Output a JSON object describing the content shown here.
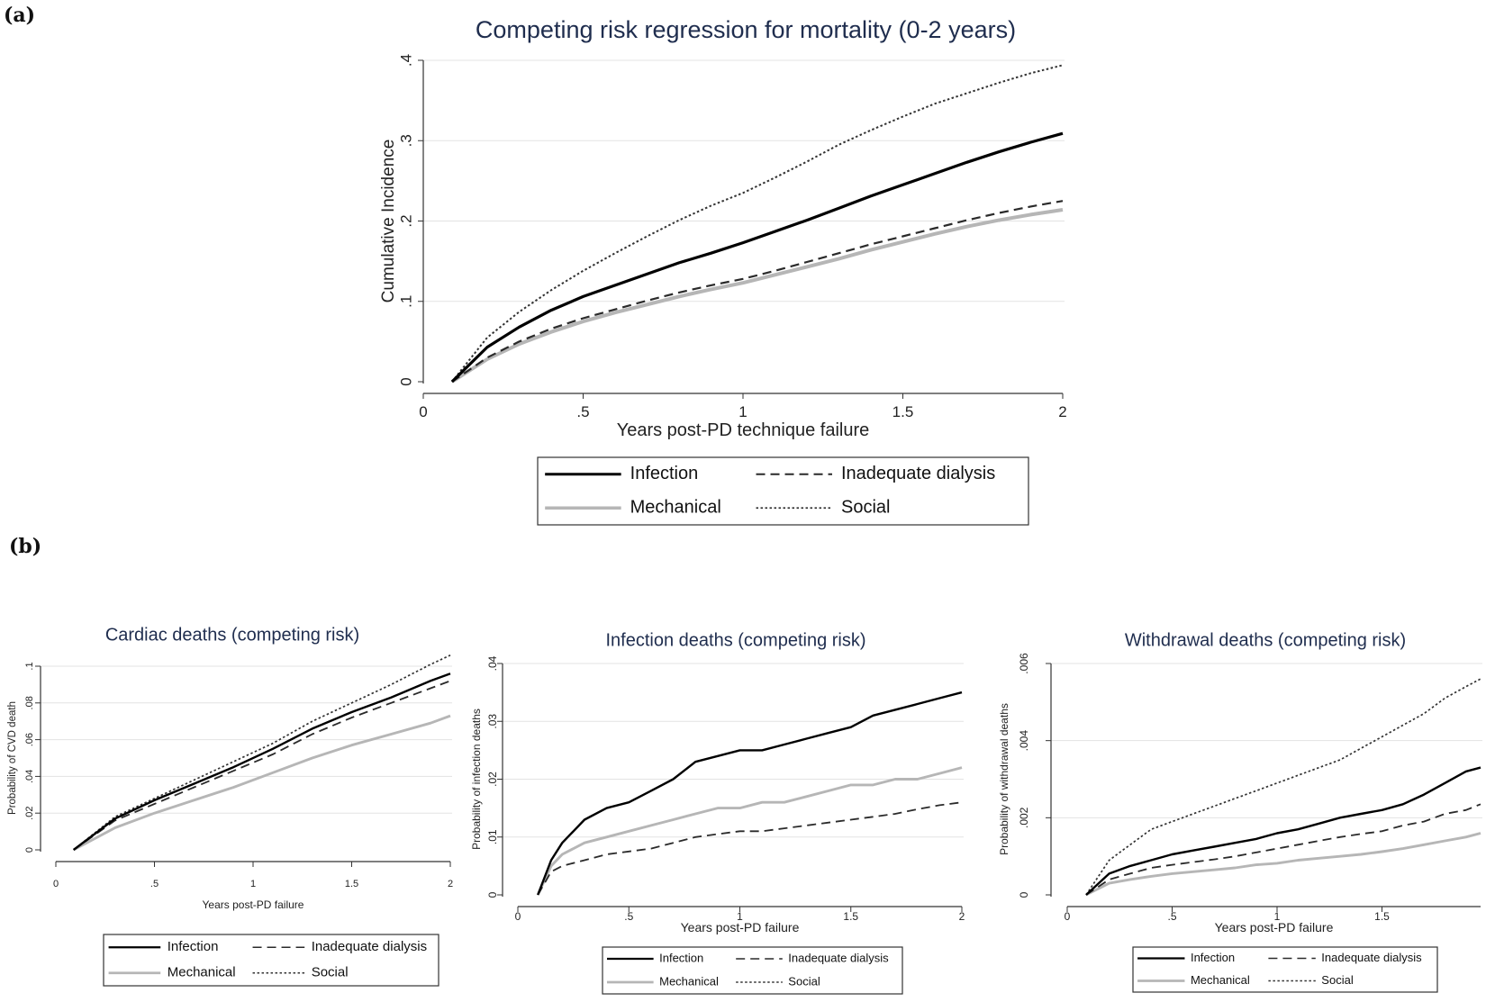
{
  "panel_labels": {
    "a": "(a)",
    "b": "(b)"
  },
  "chart_data": [
    {
      "type": "line",
      "title": "Competing risk regression for mortality (0-2 years)",
      "xlabel": "Years post-PD technique failure",
      "ylabel": "Cumulative Incidence",
      "xlim": [
        0,
        2
      ],
      "ylim": [
        0,
        0.4
      ],
      "xticks": [
        0,
        0.5,
        1,
        1.5,
        2
      ],
      "xtick_labels": [
        "0",
        ".5",
        "1",
        "1.5",
        "2"
      ],
      "yticks": [
        0,
        0.1,
        0.2,
        0.3,
        0.4
      ],
      "ytick_labels": [
        "0",
        ".1",
        ".2",
        ".3",
        ".4"
      ],
      "x": [
        0.09,
        0.2,
        0.3,
        0.4,
        0.5,
        0.6,
        0.7,
        0.8,
        0.9,
        1.0,
        1.1,
        1.2,
        1.3,
        1.4,
        1.5,
        1.6,
        1.7,
        1.8,
        1.9,
        2.0
      ],
      "series": [
        {
          "name": "Infection",
          "style": "solid",
          "color": "#000000",
          "values": [
            0.0,
            0.043,
            0.068,
            0.089,
            0.106,
            0.12,
            0.134,
            0.148,
            0.16,
            0.173,
            0.187,
            0.201,
            0.216,
            0.231,
            0.245,
            0.259,
            0.273,
            0.286,
            0.298,
            0.309
          ]
        },
        {
          "name": "Inadequate dialysis",
          "style": "dashed",
          "color": "#333333",
          "values": [
            0.0,
            0.03,
            0.05,
            0.066,
            0.079,
            0.09,
            0.101,
            0.111,
            0.12,
            0.128,
            0.138,
            0.149,
            0.16,
            0.171,
            0.181,
            0.191,
            0.201,
            0.21,
            0.218,
            0.225
          ]
        },
        {
          "name": "Mechanical",
          "style": "solid",
          "color": "#b4b4b4",
          "values": [
            0.0,
            0.028,
            0.047,
            0.062,
            0.075,
            0.086,
            0.096,
            0.106,
            0.115,
            0.123,
            0.133,
            0.143,
            0.153,
            0.164,
            0.174,
            0.184,
            0.193,
            0.201,
            0.208,
            0.214
          ]
        },
        {
          "name": "Social",
          "style": "dotted",
          "color": "#333333",
          "values": [
            0.0,
            0.055,
            0.087,
            0.114,
            0.138,
            0.16,
            0.181,
            0.201,
            0.219,
            0.235,
            0.254,
            0.274,
            0.295,
            0.313,
            0.33,
            0.346,
            0.359,
            0.372,
            0.384,
            0.394
          ]
        }
      ],
      "legend": [
        [
          "Infection",
          "Inadequate dialysis"
        ],
        [
          "Mechanical",
          "Social"
        ]
      ]
    },
    {
      "type": "line",
      "title": "Cardiac deaths (competing risk)",
      "xlabel": "Years post-PD failure",
      "ylabel": "Probability of CVD death",
      "xlim": [
        0,
        2
      ],
      "ylim": [
        0,
        0.1
      ],
      "xticks": [
        0,
        0.5,
        1,
        1.5,
        2
      ],
      "xtick_labels": [
        "0",
        ".5",
        "1",
        "1.5",
        "2"
      ],
      "yticks": [
        0,
        0.02,
        0.04,
        0.06,
        0.08,
        0.1
      ],
      "ytick_labels": [
        "0",
        ".02",
        ".04",
        ".06",
        ".08",
        ".1"
      ],
      "x": [
        0.09,
        0.3,
        0.5,
        0.7,
        0.9,
        1.1,
        1.3,
        1.5,
        1.7,
        1.9,
        2.0
      ],
      "series": [
        {
          "name": "Infection",
          "style": "solid",
          "color": "#000000",
          "values": [
            0.0,
            0.017,
            0.027,
            0.036,
            0.045,
            0.055,
            0.066,
            0.075,
            0.083,
            0.092,
            0.096
          ]
        },
        {
          "name": "Inadequate dialysis",
          "style": "dashed",
          "color": "#333333",
          "values": [
            0.0,
            0.016,
            0.025,
            0.034,
            0.043,
            0.052,
            0.063,
            0.072,
            0.08,
            0.088,
            0.092
          ]
        },
        {
          "name": "Mechanical",
          "style": "solid",
          "color": "#b4b4b4",
          "values": [
            0.0,
            0.012,
            0.02,
            0.027,
            0.034,
            0.042,
            0.05,
            0.057,
            0.063,
            0.069,
            0.073
          ]
        },
        {
          "name": "Social",
          "style": "dotted",
          "color": "#333333",
          "values": [
            0.0,
            0.018,
            0.028,
            0.038,
            0.048,
            0.058,
            0.07,
            0.08,
            0.09,
            0.101,
            0.106
          ]
        }
      ],
      "legend": [
        [
          "Infection",
          "Inadequate dialysis"
        ],
        [
          "Mechanical",
          "Social"
        ]
      ]
    },
    {
      "type": "line",
      "title": "Infection deaths (competing risk)",
      "xlabel": "Years post-PD failure",
      "ylabel": "Probability of infection deaths",
      "xlim": [
        0,
        2
      ],
      "ylim": [
        0,
        0.04
      ],
      "xticks": [
        0,
        0.5,
        1,
        1.5,
        2
      ],
      "xtick_labels": [
        "0",
        ".5",
        "1",
        "1.5",
        "2"
      ],
      "yticks": [
        0,
        0.01,
        0.02,
        0.03,
        0.04
      ],
      "ytick_labels": [
        "0",
        ".01",
        ".02",
        ".03",
        ".04"
      ],
      "x": [
        0.09,
        0.15,
        0.2,
        0.3,
        0.4,
        0.5,
        0.6,
        0.7,
        0.8,
        0.9,
        1.0,
        1.1,
        1.2,
        1.3,
        1.4,
        1.5,
        1.6,
        1.7,
        1.8,
        1.9,
        2.0
      ],
      "series": [
        {
          "name": "Infection",
          "style": "solid",
          "color": "#000000",
          "values": [
            0.0,
            0.006,
            0.009,
            0.013,
            0.015,
            0.016,
            0.018,
            0.02,
            0.023,
            0.024,
            0.025,
            0.025,
            0.026,
            0.027,
            0.028,
            0.029,
            0.031,
            0.032,
            0.033,
            0.034,
            0.035
          ]
        },
        {
          "name": "Inadequate dialysis",
          "style": "dashed",
          "color": "#333333",
          "values": [
            0.0,
            0.004,
            0.005,
            0.006,
            0.007,
            0.0075,
            0.008,
            0.009,
            0.01,
            0.0105,
            0.011,
            0.011,
            0.0115,
            0.012,
            0.0125,
            0.013,
            0.0135,
            0.014,
            0.0148,
            0.0155,
            0.016
          ]
        },
        {
          "name": "Mechanical",
          "style": "solid",
          "color": "#b4b4b4",
          "values": [
            0.0,
            0.005,
            0.007,
            0.009,
            0.01,
            0.011,
            0.012,
            0.013,
            0.014,
            0.015,
            0.015,
            0.016,
            0.016,
            0.017,
            0.018,
            0.019,
            0.019,
            0.02,
            0.02,
            0.021,
            0.022
          ]
        }
      ],
      "legend": [
        [
          "Infection",
          "Inadequate dialysis"
        ],
        [
          "Mechanical",
          "Social"
        ]
      ]
    },
    {
      "type": "line",
      "title": "Withdrawal deaths (competing risk)",
      "xlabel": "Years post-PD failure",
      "ylabel": "Probability of withdrawal deaths",
      "xlim": [
        0,
        1.97
      ],
      "ylim": [
        0,
        0.006
      ],
      "xticks": [
        0,
        0.5,
        1,
        1.5
      ],
      "xtick_labels": [
        "0",
        ".5",
        "1",
        "1.5"
      ],
      "yticks": [
        0,
        0.002,
        0.004,
        0.006
      ],
      "ytick_labels": [
        "0",
        ".002",
        ".004",
        ".006"
      ],
      "x": [
        0.09,
        0.2,
        0.3,
        0.4,
        0.5,
        0.6,
        0.7,
        0.8,
        0.9,
        1.0,
        1.1,
        1.2,
        1.3,
        1.4,
        1.5,
        1.6,
        1.7,
        1.8,
        1.9,
        1.97
      ],
      "series": [
        {
          "name": "Infection",
          "style": "solid",
          "color": "#000000",
          "values": [
            0.0,
            0.00055,
            0.00075,
            0.0009,
            0.00105,
            0.00115,
            0.00125,
            0.00135,
            0.00145,
            0.0016,
            0.0017,
            0.00185,
            0.002,
            0.0021,
            0.0022,
            0.00235,
            0.0026,
            0.0029,
            0.0032,
            0.0033
          ]
        },
        {
          "name": "Inadequate dialysis",
          "style": "dashed",
          "color": "#333333",
          "values": [
            0.0,
            0.0004,
            0.00055,
            0.0007,
            0.00078,
            0.00085,
            0.00092,
            0.001,
            0.0011,
            0.0012,
            0.0013,
            0.0014,
            0.0015,
            0.00158,
            0.00165,
            0.0018,
            0.0019,
            0.0021,
            0.0022,
            0.00235
          ]
        },
        {
          "name": "Mechanical",
          "style": "solid",
          "color": "#b4b4b4",
          "values": [
            0.0,
            0.0003,
            0.0004,
            0.00048,
            0.00055,
            0.0006,
            0.00065,
            0.0007,
            0.00078,
            0.00082,
            0.0009,
            0.00095,
            0.001,
            0.00105,
            0.00112,
            0.0012,
            0.0013,
            0.0014,
            0.0015,
            0.0016
          ]
        },
        {
          "name": "Social",
          "style": "dotted",
          "color": "#333333",
          "values": [
            0.0,
            0.0009,
            0.0013,
            0.0017,
            0.0019,
            0.0021,
            0.0023,
            0.0025,
            0.0027,
            0.0029,
            0.0031,
            0.0033,
            0.0035,
            0.0038,
            0.0041,
            0.0044,
            0.0047,
            0.0051,
            0.0054,
            0.0056
          ]
        }
      ],
      "legend": [
        [
          "Infection",
          "Inadequate dialysis"
        ],
        [
          "Mechanical",
          "Social"
        ]
      ]
    }
  ]
}
